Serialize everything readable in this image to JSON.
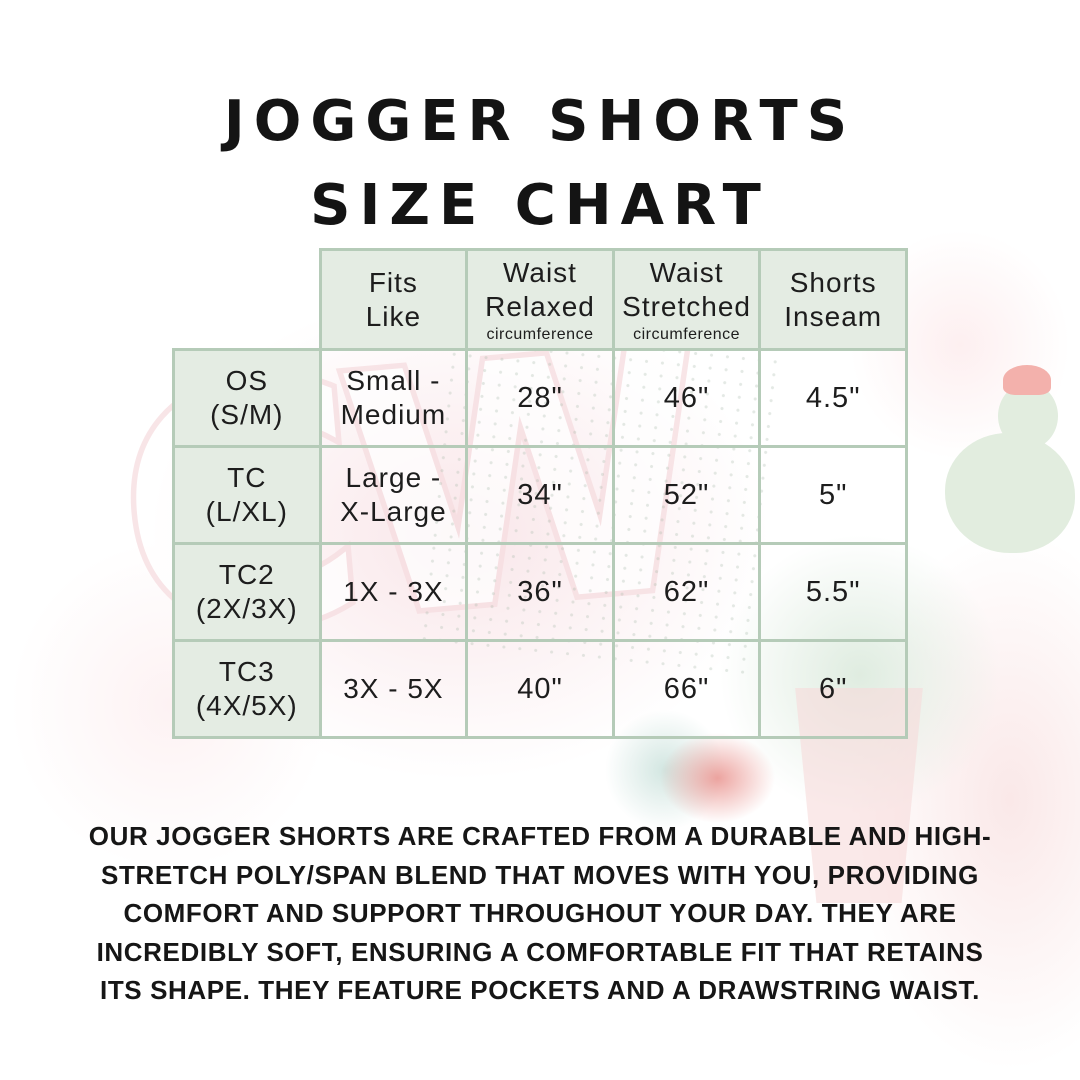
{
  "title": {
    "line1": "JOGGER SHORTS",
    "line2": "SIZE CHART"
  },
  "watermark": {
    "text": "CW"
  },
  "colors": {
    "table_border": "#b5cbb8",
    "cell_fill": "#e4ece3",
    "text": "#1b1b1b",
    "watermark_pink": "#f6dde0",
    "watermark_green": "#e2eddf",
    "watermark_red": "#e88d88"
  },
  "table": {
    "headers": [
      {
        "line1": "Fits",
        "line2": "Like",
        "sub": ""
      },
      {
        "line1": "Waist",
        "line2": "Relaxed",
        "sub": "circumference"
      },
      {
        "line1": "Waist",
        "line2": "Stretched",
        "sub": "circumference"
      },
      {
        "line1": "Shorts",
        "line2": "Inseam",
        "sub": ""
      }
    ],
    "rows": [
      {
        "label1": "OS",
        "label2": "(S/M)",
        "fits1": "Small -",
        "fits2": "Medium",
        "waist_relaxed": "28\"",
        "waist_stretched": "46\"",
        "inseam": "4.5\""
      },
      {
        "label1": "TC",
        "label2": "(L/XL)",
        "fits1": "Large -",
        "fits2": "X-Large",
        "waist_relaxed": "34\"",
        "waist_stretched": "52\"",
        "inseam": "5\""
      },
      {
        "label1": "TC2",
        "label2": "(2X/3X)",
        "fits1": "1X - 3X",
        "fits2": "",
        "waist_relaxed": "36\"",
        "waist_stretched": "62\"",
        "inseam": "5.5\""
      },
      {
        "label1": "TC3",
        "label2": "(4X/5X)",
        "fits1": "3X - 5X",
        "fits2": "",
        "waist_relaxed": "40\"",
        "waist_stretched": "66\"",
        "inseam": "6\""
      }
    ]
  },
  "description": {
    "lines": [
      "OUR JOGGER SHORTS ARE CRAFTED FROM A DURABLE AND HIGH-",
      "STRETCH POLY/SPAN BLEND THAT MOVES WITH YOU, PROVIDING",
      "COMFORT AND SUPPORT THROUGHOUT YOUR DAY. THEY ARE",
      "INCREDIBLY SOFT, ENSURING A COMFORTABLE FIT THAT RETAINS",
      "ITS SHAPE. THEY FEATURE POCKETS AND A DRAWSTRING WAIST."
    ]
  },
  "chart_data": {
    "type": "table",
    "title": "Jogger Shorts Size Chart",
    "columns": [
      "",
      "Fits Like",
      "Waist Relaxed circumference",
      "Waist Stretched circumference",
      "Shorts Inseam"
    ],
    "rows": [
      [
        "OS (S/M)",
        "Small - Medium",
        "28\"",
        "46\"",
        "4.5\""
      ],
      [
        "TC (L/XL)",
        "Large - X-Large",
        "34\"",
        "52\"",
        "5\""
      ],
      [
        "TC2 (2X/3X)",
        "1X - 3X",
        "36\"",
        "62\"",
        "5.5\""
      ],
      [
        "TC3 (4X/5X)",
        "3X - 5X",
        "40\"",
        "66\"",
        "6\""
      ]
    ]
  }
}
